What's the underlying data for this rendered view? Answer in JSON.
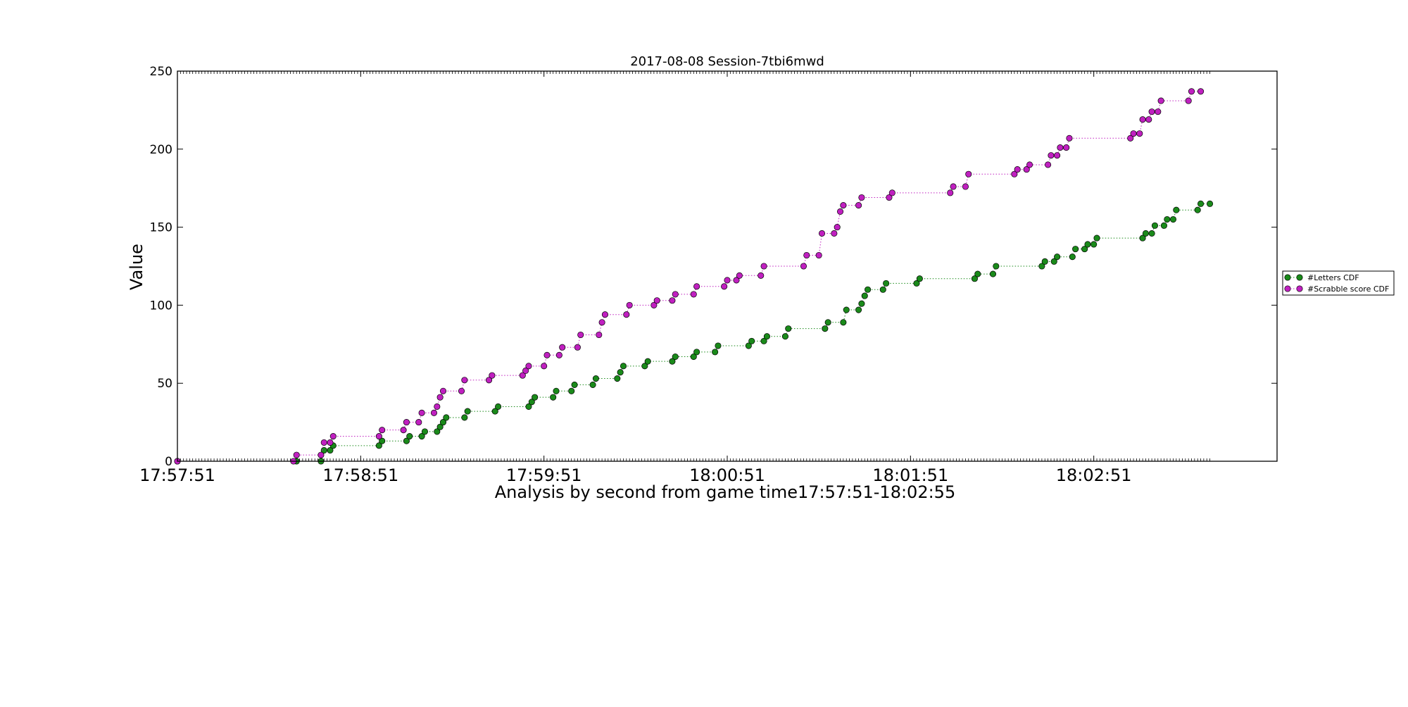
{
  "chart_data": {
    "type": "scatter",
    "title": "2017-08-08 Session-7tbi6mwd",
    "xlabel": "Analysis by second from game time17:57:51-18:02:55",
    "ylabel": "Value",
    "xlim": [
      "17:57:51",
      "18:03:51"
    ],
    "ylim": [
      0,
      250
    ],
    "x_tick_labels": [
      "17:57:51",
      "17:58:51",
      "17:59:51",
      "18:00:51",
      "18:01:51",
      "18:02:51"
    ],
    "y_tick_labels": [
      "0",
      "50",
      "100",
      "150",
      "200",
      "250"
    ],
    "grid": false,
    "legend_position": "outside-right",
    "series": [
      {
        "name": "#Letters CDF",
        "color": "#1a8a1a",
        "values": [
          [
            "17:57:51",
            0
          ],
          [
            "17:58:30",
            0
          ],
          [
            "17:58:38",
            0
          ],
          [
            "17:58:39",
            7
          ],
          [
            "17:58:41",
            7
          ],
          [
            "17:58:42",
            10
          ],
          [
            "17:58:57",
            10
          ],
          [
            "17:58:58",
            13
          ],
          [
            "17:59:06",
            13
          ],
          [
            "17:59:07",
            16
          ],
          [
            "17:59:11",
            16
          ],
          [
            "17:59:12",
            19
          ],
          [
            "17:59:16",
            19
          ],
          [
            "17:59:17",
            22
          ],
          [
            "17:59:18",
            25
          ],
          [
            "17:59:19",
            28
          ],
          [
            "17:59:25",
            28
          ],
          [
            "17:59:26",
            32
          ],
          [
            "17:59:35",
            32
          ],
          [
            "17:59:36",
            35
          ],
          [
            "17:59:46",
            35
          ],
          [
            "17:59:47",
            38
          ],
          [
            "17:59:48",
            41
          ],
          [
            "17:59:54",
            41
          ],
          [
            "17:59:55",
            45
          ],
          [
            "18:00:00",
            45
          ],
          [
            "18:00:01",
            49
          ],
          [
            "18:00:07",
            49
          ],
          [
            "18:00:08",
            53
          ],
          [
            "18:00:15",
            53
          ],
          [
            "18:00:16",
            57
          ],
          [
            "18:00:17",
            61
          ],
          [
            "18:00:24",
            61
          ],
          [
            "18:00:25",
            64
          ],
          [
            "18:00:33",
            64
          ],
          [
            "18:00:34",
            67
          ],
          [
            "18:00:40",
            67
          ],
          [
            "18:00:41",
            70
          ],
          [
            "18:00:47",
            70
          ],
          [
            "18:00:48",
            74
          ],
          [
            "18:00:58",
            74
          ],
          [
            "18:00:59",
            77
          ],
          [
            "18:01:03",
            77
          ],
          [
            "18:01:04",
            80
          ],
          [
            "18:01:10",
            80
          ],
          [
            "18:01:11",
            85
          ],
          [
            "18:01:23",
            85
          ],
          [
            "18:01:24",
            89
          ],
          [
            "18:01:29",
            89
          ],
          [
            "18:01:30",
            97
          ],
          [
            "18:01:34",
            97
          ],
          [
            "18:01:35",
            101
          ],
          [
            "18:01:36",
            106
          ],
          [
            "18:01:37",
            110
          ],
          [
            "18:01:42",
            110
          ],
          [
            "18:01:43",
            114
          ],
          [
            "18:01:53",
            114
          ],
          [
            "18:01:54",
            117
          ],
          [
            "18:02:12",
            117
          ],
          [
            "18:02:13",
            120
          ],
          [
            "18:02:18",
            120
          ],
          [
            "18:02:19",
            125
          ],
          [
            "18:02:34",
            125
          ],
          [
            "18:02:35",
            128
          ],
          [
            "18:02:38",
            128
          ],
          [
            "18:02:39",
            131
          ],
          [
            "18:02:44",
            131
          ],
          [
            "18:02:45",
            136
          ],
          [
            "18:02:48",
            136
          ],
          [
            "18:02:49",
            139
          ],
          [
            "18:02:51",
            139
          ],
          [
            "18:02:52",
            143
          ],
          [
            "18:03:07",
            143
          ],
          [
            "18:03:08",
            146
          ],
          [
            "18:03:10",
            146
          ],
          [
            "18:03:11",
            151
          ],
          [
            "18:03:14",
            151
          ],
          [
            "18:03:15",
            155
          ],
          [
            "18:03:17",
            155
          ],
          [
            "18:03:18",
            161
          ],
          [
            "18:03:25",
            161
          ],
          [
            "18:03:26",
            165
          ],
          [
            "18:03:29",
            165
          ]
        ]
      },
      {
        "name": "#Scrabble score CDF",
        "color": "#c020c0",
        "values": [
          [
            "17:57:51",
            0
          ],
          [
            "17:58:29",
            0
          ],
          [
            "17:58:30",
            4
          ],
          [
            "17:58:38",
            4
          ],
          [
            "17:58:39",
            12
          ],
          [
            "17:58:41",
            12
          ],
          [
            "17:58:42",
            16
          ],
          [
            "17:58:57",
            16
          ],
          [
            "17:58:58",
            20
          ],
          [
            "17:59:05",
            20
          ],
          [
            "17:59:06",
            25
          ],
          [
            "17:59:10",
            25
          ],
          [
            "17:59:11",
            31
          ],
          [
            "17:59:15",
            31
          ],
          [
            "17:59:16",
            35
          ],
          [
            "17:59:17",
            41
          ],
          [
            "17:59:18",
            45
          ],
          [
            "17:59:24",
            45
          ],
          [
            "17:59:25",
            52
          ],
          [
            "17:59:33",
            52
          ],
          [
            "17:59:34",
            55
          ],
          [
            "17:59:44",
            55
          ],
          [
            "17:59:45",
            58
          ],
          [
            "17:59:46",
            61
          ],
          [
            "17:59:51",
            61
          ],
          [
            "17:59:52",
            68
          ],
          [
            "17:59:56",
            68
          ],
          [
            "17:59:57",
            73
          ],
          [
            "18:00:02",
            73
          ],
          [
            "18:00:03",
            81
          ],
          [
            "18:00:09",
            81
          ],
          [
            "18:00:10",
            89
          ],
          [
            "18:00:11",
            94
          ],
          [
            "18:00:18",
            94
          ],
          [
            "18:00:19",
            100
          ],
          [
            "18:00:27",
            100
          ],
          [
            "18:00:28",
            103
          ],
          [
            "18:00:33",
            103
          ],
          [
            "18:00:34",
            107
          ],
          [
            "18:00:40",
            107
          ],
          [
            "18:00:41",
            112
          ],
          [
            "18:00:50",
            112
          ],
          [
            "18:00:51",
            116
          ],
          [
            "18:00:54",
            116
          ],
          [
            "18:00:55",
            119
          ],
          [
            "18:01:02",
            119
          ],
          [
            "18:01:03",
            125
          ],
          [
            "18:01:16",
            125
          ],
          [
            "18:01:17",
            132
          ],
          [
            "18:01:21",
            132
          ],
          [
            "18:01:22",
            146
          ],
          [
            "18:01:26",
            146
          ],
          [
            "18:01:27",
            150
          ],
          [
            "18:01:28",
            160
          ],
          [
            "18:01:29",
            164
          ],
          [
            "18:01:34",
            164
          ],
          [
            "18:01:35",
            169
          ],
          [
            "18:01:44",
            169
          ],
          [
            "18:01:45",
            172
          ],
          [
            "18:02:04",
            172
          ],
          [
            "18:02:05",
            176
          ],
          [
            "18:02:09",
            176
          ],
          [
            "18:02:10",
            184
          ],
          [
            "18:02:25",
            184
          ],
          [
            "18:02:26",
            187
          ],
          [
            "18:02:29",
            187
          ],
          [
            "18:02:30",
            190
          ],
          [
            "18:02:36",
            190
          ],
          [
            "18:02:37",
            196
          ],
          [
            "18:02:39",
            196
          ],
          [
            "18:02:40",
            201
          ],
          [
            "18:02:42",
            201
          ],
          [
            "18:02:43",
            207
          ],
          [
            "18:03:03",
            207
          ],
          [
            "18:03:04",
            210
          ],
          [
            "18:03:06",
            210
          ],
          [
            "18:03:07",
            219
          ],
          [
            "18:03:09",
            219
          ],
          [
            "18:03:10",
            224
          ],
          [
            "18:03:12",
            224
          ],
          [
            "18:03:13",
            231
          ],
          [
            "18:03:22",
            231
          ],
          [
            "18:03:23",
            237
          ],
          [
            "18:03:26",
            237
          ]
        ]
      }
    ]
  }
}
